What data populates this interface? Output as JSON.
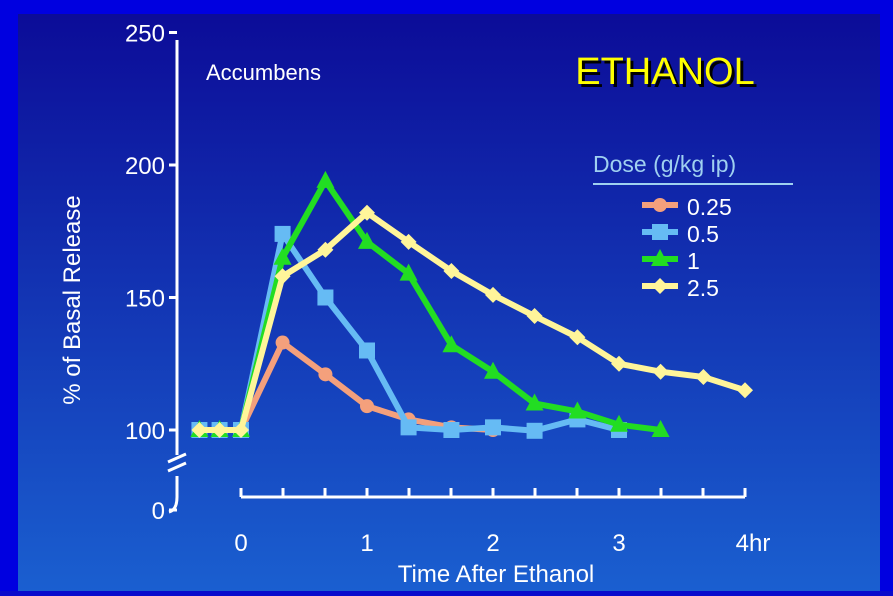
{
  "chart_data": {
    "type": "line",
    "title": "ETHANOL",
    "region_label": "Accumbens",
    "xlabel": "Time After Ethanol",
    "ylabel": "% of Basal Release",
    "x_ticks": [
      {
        "value": 0,
        "label": "0"
      },
      {
        "value": 1,
        "label": "1"
      },
      {
        "value": 2,
        "label": "2"
      },
      {
        "value": 3,
        "label": "3"
      },
      {
        "value": 4,
        "label": "4hr"
      }
    ],
    "y_ticks": [
      {
        "value": 0,
        "label": "0"
      },
      {
        "value": 100,
        "label": "100"
      },
      {
        "value": 150,
        "label": "150"
      },
      {
        "value": 200,
        "label": "200"
      },
      {
        "value": 250,
        "label": "250"
      }
    ],
    "xlim": [
      -0.5,
      4
    ],
    "ylim": [
      0,
      250
    ],
    "y_axis_break": [
      0,
      100
    ],
    "legend_title": "Dose (g/kg ip)",
    "legend_position": "right",
    "series": [
      {
        "name": "0.25",
        "color": "#f4a07c",
        "marker": "circle",
        "x": [
          -0.33,
          -0.17,
          0,
          0.33,
          0.67,
          1.0,
          1.33,
          1.67,
          2.0
        ],
        "y": [
          100,
          100,
          100,
          133,
          121,
          109,
          104,
          101,
          100
        ]
      },
      {
        "name": "0.5",
        "color": "#66bbf4",
        "marker": "square",
        "x": [
          -0.33,
          -0.17,
          0,
          0.33,
          0.67,
          1.0,
          1.33,
          1.67,
          2.0,
          2.33,
          2.67,
          3.0
        ],
        "y": [
          100,
          100,
          100,
          174,
          150,
          130,
          101,
          100,
          101,
          99,
          104,
          100
        ]
      },
      {
        "name": "1",
        "color": "#22dd22",
        "marker": "triangle",
        "x": [
          -0.33,
          -0.17,
          0,
          0.33,
          0.67,
          1.0,
          1.33,
          1.67,
          2.0,
          2.33,
          2.67,
          3.0,
          3.33
        ],
        "y": [
          100,
          100,
          100,
          165,
          194,
          171,
          159,
          132,
          122,
          110,
          107,
          102,
          100
        ]
      },
      {
        "name": "2.5",
        "color": "#fff59a",
        "marker": "diamond",
        "x": [
          -0.33,
          -0.17,
          0,
          0.33,
          0.67,
          1.0,
          1.33,
          1.67,
          2.0,
          2.33,
          2.67,
          3.0,
          3.33,
          3.67,
          4.0
        ],
        "y": [
          100,
          100,
          100,
          158,
          168,
          182,
          171,
          160,
          151,
          143,
          135,
          125,
          122,
          120,
          115
        ]
      }
    ]
  }
}
